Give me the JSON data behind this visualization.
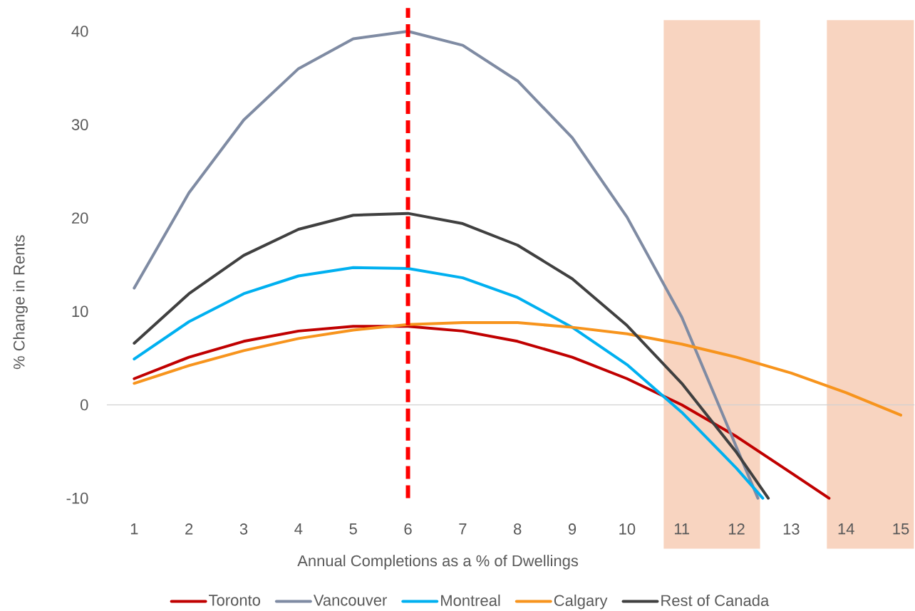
{
  "chart_data": {
    "type": "line",
    "xlabel": "Annual Completions as a % of Dwellings",
    "ylabel": "% Change in Rents",
    "x": [
      1,
      2,
      3,
      4,
      5,
      6,
      7,
      8,
      9,
      10,
      11,
      12,
      13,
      14,
      15
    ],
    "xlim": [
      0.5,
      15.25
    ],
    "xticks": [
      1,
      2,
      3,
      4,
      5,
      6,
      7,
      8,
      9,
      10,
      11,
      12,
      13,
      14,
      15
    ],
    "ylim": [
      -10,
      40
    ],
    "yticks": [
      -10,
      0,
      10,
      20,
      30,
      40
    ],
    "series": [
      {
        "name": "Toronto",
        "color": "#c00000",
        "x": [
          1,
          2,
          3,
          4,
          5,
          6,
          7,
          8,
          9,
          10,
          11,
          12,
          13,
          13.69
        ],
        "values": [
          2.8,
          5.1,
          6.8,
          7.9,
          8.4,
          8.4,
          7.9,
          6.8,
          5.1,
          2.8,
          0,
          -3.4,
          -7.3,
          -10
        ]
      },
      {
        "name": "Vancouver",
        "color": "#7f8ba3",
        "x": [
          1,
          2,
          3,
          4,
          5,
          6,
          7,
          8,
          9,
          10,
          11,
          12.39
        ],
        "values": [
          12.5,
          22.7,
          30.5,
          36,
          39.2,
          40,
          38.5,
          34.7,
          28.6,
          20.1,
          9.4,
          -10
        ]
      },
      {
        "name": "Montreal",
        "color": "#00b0f0",
        "x": [
          1,
          2,
          3,
          4,
          5,
          6,
          7,
          8,
          9,
          10,
          11,
          12,
          12.48
        ],
        "values": [
          4.9,
          8.9,
          11.9,
          13.8,
          14.7,
          14.6,
          13.6,
          11.5,
          8.3,
          4.3,
          -0.8,
          -6.8,
          -10
        ]
      },
      {
        "name": "Calgary",
        "color": "#f7941d",
        "values": [
          2.3,
          4.2,
          5.8,
          7.1,
          8.0,
          8.6,
          8.8,
          8.8,
          8.3,
          7.6,
          6.5,
          5.1,
          3.4,
          1.3,
          -1.1
        ]
      },
      {
        "name": "Rest of Canada",
        "color": "#404040",
        "x": [
          1,
          2,
          3,
          4,
          5,
          6,
          7,
          8,
          9,
          10,
          11,
          12,
          12.58
        ],
        "values": [
          6.6,
          11.9,
          16,
          18.8,
          20.3,
          20.5,
          19.4,
          17.1,
          13.5,
          8.5,
          2.3,
          -5.1,
          -10
        ]
      }
    ],
    "ref_lines": [
      {
        "axis": "x",
        "value": 6,
        "color": "#ff0000",
        "line_style": "dashed"
      }
    ],
    "bands": [
      {
        "axis": "x",
        "from": 10.67,
        "to": 12.43,
        "color": "#f8d4c0"
      },
      {
        "axis": "x",
        "from": 13.65,
        "to": 15.24,
        "color": "#f8d4c0"
      }
    ],
    "legend": "bottom"
  }
}
